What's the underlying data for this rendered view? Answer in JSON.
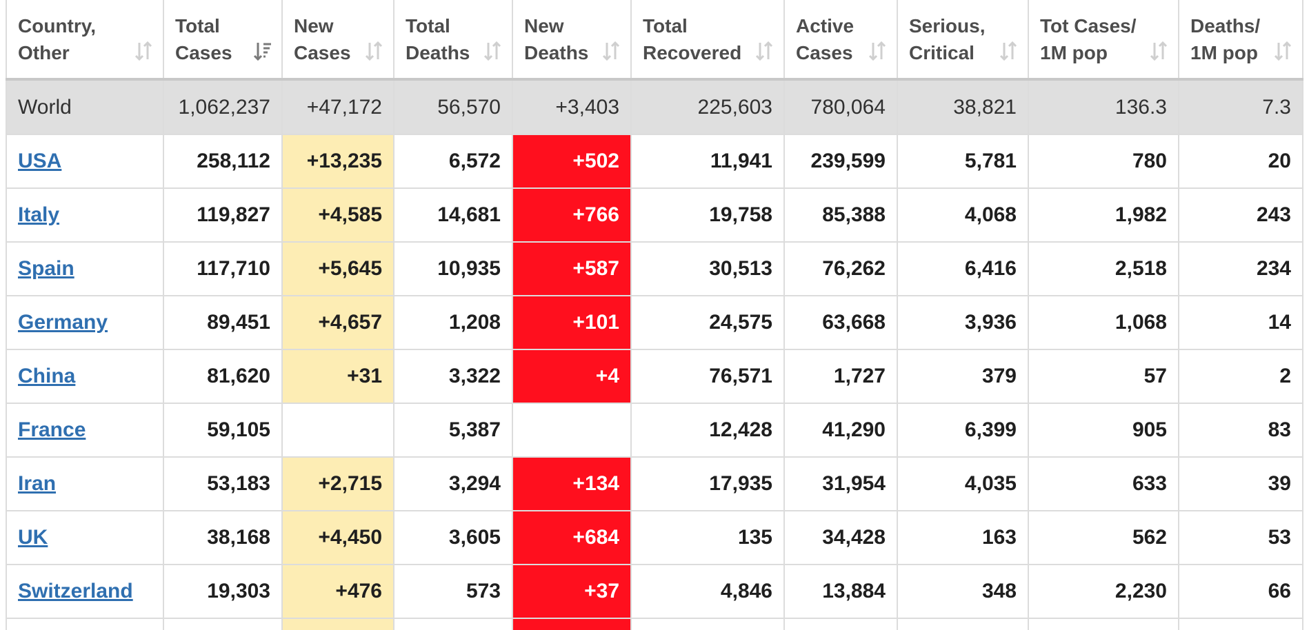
{
  "colors": {
    "new_cases_highlight": "#fdedb4",
    "new_deaths_highlight": "#ff0f1e",
    "world_row_bg": "#dfdfdf",
    "link": "#2f6fb0"
  },
  "columns": [
    {
      "label": "Country,\nOther",
      "sort_icon": "sort-icon"
    },
    {
      "label": "Total\nCases",
      "sort_icon": "sort-desc-icon"
    },
    {
      "label": "New\nCases",
      "sort_icon": "sort-icon"
    },
    {
      "label": "Total\nDeaths",
      "sort_icon": "sort-icon"
    },
    {
      "label": "New\nDeaths",
      "sort_icon": "sort-icon"
    },
    {
      "label": "Total\nRecovered",
      "sort_icon": "sort-icon"
    },
    {
      "label": "Active\nCases",
      "sort_icon": "sort-icon"
    },
    {
      "label": "Serious,\nCritical",
      "sort_icon": "sort-icon"
    },
    {
      "label": "Tot Cases/\n1M pop",
      "sort_icon": "sort-icon"
    },
    {
      "label": "Deaths/\n1M pop",
      "sort_icon": "sort-icon"
    }
  ],
  "world": {
    "country": "World",
    "total_cases": "1,062,237",
    "new_cases": "+47,172",
    "total_deaths": "56,570",
    "new_deaths": "+3,403",
    "total_recovered": "225,603",
    "active_cases": "780,064",
    "serious_critical": "38,821",
    "tot_cases_1m": "136.3",
    "deaths_1m": "7.3"
  },
  "rows": [
    {
      "country": "USA",
      "total_cases": "258,112",
      "new_cases": "+13,235",
      "total_deaths": "6,572",
      "new_deaths": "+502",
      "total_recovered": "11,941",
      "active_cases": "239,599",
      "serious_critical": "5,781",
      "tot_cases_1m": "780",
      "deaths_1m": "20"
    },
    {
      "country": "Italy",
      "total_cases": "119,827",
      "new_cases": "+4,585",
      "total_deaths": "14,681",
      "new_deaths": "+766",
      "total_recovered": "19,758",
      "active_cases": "85,388",
      "serious_critical": "4,068",
      "tot_cases_1m": "1,982",
      "deaths_1m": "243"
    },
    {
      "country": "Spain",
      "total_cases": "117,710",
      "new_cases": "+5,645",
      "total_deaths": "10,935",
      "new_deaths": "+587",
      "total_recovered": "30,513",
      "active_cases": "76,262",
      "serious_critical": "6,416",
      "tot_cases_1m": "2,518",
      "deaths_1m": "234"
    },
    {
      "country": "Germany",
      "total_cases": "89,451",
      "new_cases": "+4,657",
      "total_deaths": "1,208",
      "new_deaths": "+101",
      "total_recovered": "24,575",
      "active_cases": "63,668",
      "serious_critical": "3,936",
      "tot_cases_1m": "1,068",
      "deaths_1m": "14"
    },
    {
      "country": "China",
      "total_cases": "81,620",
      "new_cases": "+31",
      "total_deaths": "3,322",
      "new_deaths": "+4",
      "total_recovered": "76,571",
      "active_cases": "1,727",
      "serious_critical": "379",
      "tot_cases_1m": "57",
      "deaths_1m": "2"
    },
    {
      "country": "France",
      "total_cases": "59,105",
      "new_cases": "",
      "total_deaths": "5,387",
      "new_deaths": "",
      "total_recovered": "12,428",
      "active_cases": "41,290",
      "serious_critical": "6,399",
      "tot_cases_1m": "905",
      "deaths_1m": "83"
    },
    {
      "country": "Iran",
      "total_cases": "53,183",
      "new_cases": "+2,715",
      "total_deaths": "3,294",
      "new_deaths": "+134",
      "total_recovered": "17,935",
      "active_cases": "31,954",
      "serious_critical": "4,035",
      "tot_cases_1m": "633",
      "deaths_1m": "39"
    },
    {
      "country": "UK",
      "total_cases": "38,168",
      "new_cases": "+4,450",
      "total_deaths": "3,605",
      "new_deaths": "+684",
      "total_recovered": "135",
      "active_cases": "34,428",
      "serious_critical": "163",
      "tot_cases_1m": "562",
      "deaths_1m": "53"
    },
    {
      "country": "Switzerland",
      "total_cases": "19,303",
      "new_cases": "+476",
      "total_deaths": "573",
      "new_deaths": "+37",
      "total_recovered": "4,846",
      "active_cases": "13,884",
      "serious_critical": "348",
      "tot_cases_1m": "2,230",
      "deaths_1m": "66"
    }
  ]
}
